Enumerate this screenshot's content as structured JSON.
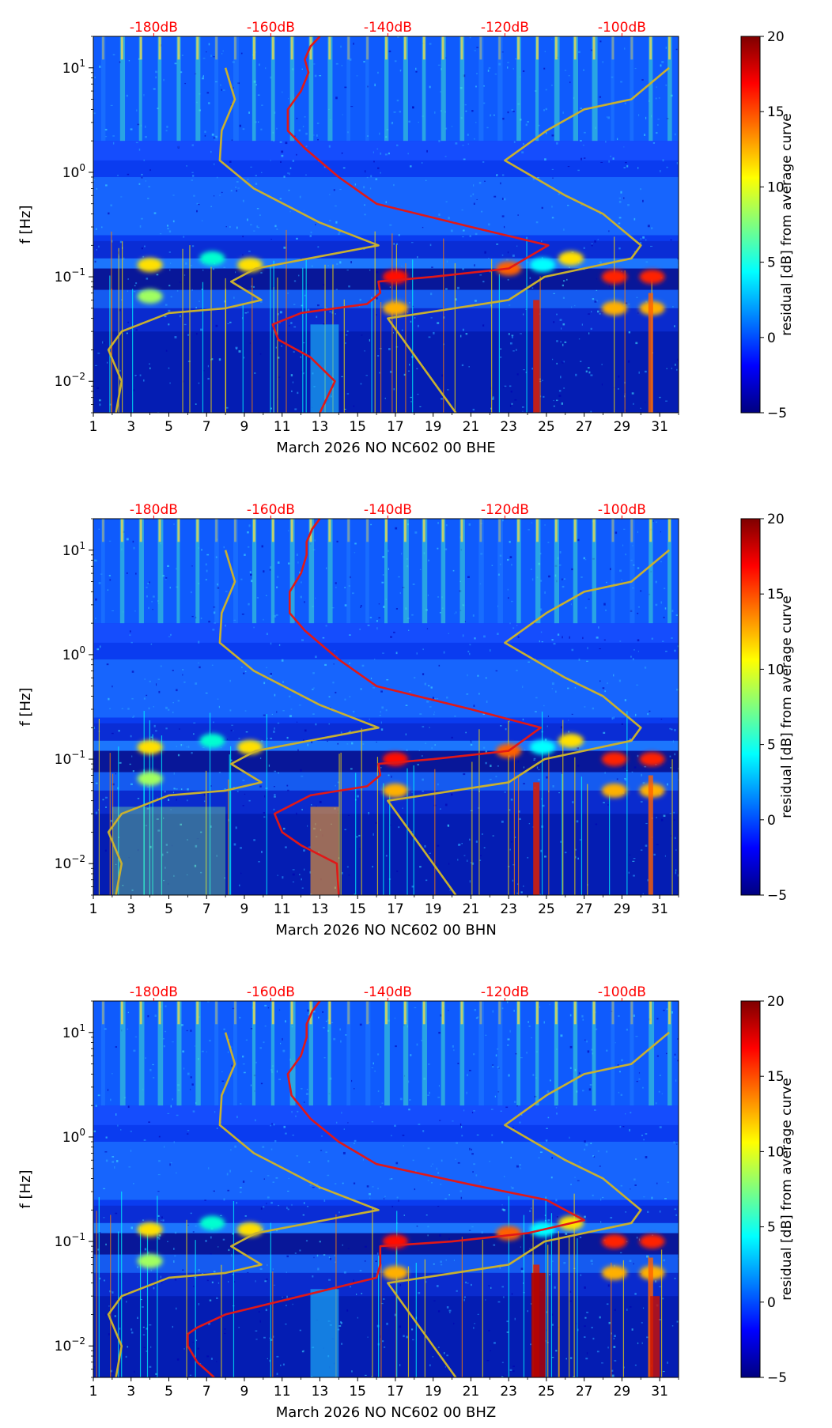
{
  "colors": {
    "peterson": "#c8b030",
    "psd": "#e01818",
    "top_axis_text": "#ff0000",
    "colormap": [
      "#00007f",
      "#0000ff",
      "#007fff",
      "#00ffff",
      "#7fff7f",
      "#ffff00",
      "#ff7f00",
      "#ff0000",
      "#7f0000"
    ]
  },
  "chart_data": [
    {
      "type": "heatmap",
      "xlabel": "March 2026 NO NC602 00 BHE",
      "ylabel": "f [Hz]",
      "x_ticks": [
        "1",
        "3",
        "5",
        "7",
        "9",
        "11",
        "13",
        "15",
        "17",
        "19",
        "21",
        "23",
        "25",
        "27",
        "29",
        "31"
      ],
      "xlim": [
        1,
        32
      ],
      "y_scale": "log",
      "ylim": [
        0.005,
        20
      ],
      "y_ticks": [
        {
          "value": 0.01,
          "base": "10",
          "exp": "−2"
        },
        {
          "value": 0.1,
          "base": "10",
          "exp": "−1"
        },
        {
          "value": 1,
          "base": "10",
          "exp": "0"
        },
        {
          "value": 10,
          "base": "10",
          "exp": "1"
        }
      ],
      "top_ticks": [
        {
          "label": "-180dB",
          "day": 4.2
        },
        {
          "label": "-160dB",
          "day": 10.4
        },
        {
          "label": "-140dB",
          "day": 16.6
        },
        {
          "label": "-120dB",
          "day": 22.8
        },
        {
          "label": "-100dB",
          "day": 29.0
        }
      ],
      "colorbar": {
        "label": "residual [dB] from average curve",
        "min": -5,
        "max": 20,
        "ticks": [
          "20",
          "15",
          "10",
          "5",
          "0",
          "−5"
        ]
      },
      "curves": [
        {
          "key": "nlnm",
          "points": [
            [
              2.2,
              0.005
            ],
            [
              2.5,
              0.01
            ],
            [
              1.8,
              0.02
            ],
            [
              2.5,
              0.03
            ],
            [
              5,
              0.045
            ],
            [
              8,
              0.05
            ],
            [
              9.9,
              0.06
            ],
            [
              8.3,
              0.09
            ],
            [
              9.6,
              0.12
            ],
            [
              16.1,
              0.2
            ],
            [
              13,
              0.33
            ],
            [
              9.5,
              0.7
            ],
            [
              7.7,
              1.3
            ],
            [
              7.8,
              2.5
            ],
            [
              8.5,
              5
            ],
            [
              8.0,
              10
            ]
          ]
        },
        {
          "key": "nhnm",
          "points": [
            [
              20.2,
              0.005
            ],
            [
              16.6,
              0.04
            ],
            [
              23,
              0.06
            ],
            [
              24.9,
              0.1
            ],
            [
              29.5,
              0.15
            ],
            [
              30,
              0.2
            ],
            [
              28,
              0.4
            ],
            [
              26,
              0.6
            ],
            [
              22.8,
              1.3
            ],
            [
              25,
              2.5
            ],
            [
              27,
              4
            ],
            [
              29.5,
              5
            ],
            [
              31.5,
              10
            ]
          ]
        },
        {
          "key": "psd",
          "points": [
            [
              13,
              0.005
            ],
            [
              13.8,
              0.01
            ],
            [
              12.5,
              0.017
            ],
            [
              10.8,
              0.025
            ],
            [
              10.5,
              0.035
            ],
            [
              12,
              0.045
            ],
            [
              15.5,
              0.055
            ],
            [
              16.2,
              0.07
            ],
            [
              16.1,
              0.09
            ],
            [
              19,
              0.1
            ],
            [
              23,
              0.12
            ],
            [
              25.1,
              0.2
            ],
            [
              21,
              0.3
            ],
            [
              16,
              0.5
            ],
            [
              14,
              0.9
            ],
            [
              12.2,
              1.7
            ],
            [
              11.3,
              2.5
            ],
            [
              11.3,
              4
            ],
            [
              12,
              6
            ],
            [
              12.4,
              9
            ],
            [
              12.2,
              12
            ],
            [
              12.5,
              16
            ],
            [
              13,
              20
            ]
          ]
        }
      ]
    },
    {
      "type": "heatmap",
      "xlabel": "March 2026 NO NC602 00 BHN",
      "ylabel": "f [Hz]",
      "x_ticks": [
        "1",
        "3",
        "5",
        "7",
        "9",
        "11",
        "13",
        "15",
        "17",
        "19",
        "21",
        "23",
        "25",
        "27",
        "29",
        "31"
      ],
      "xlim": [
        1,
        32
      ],
      "y_scale": "log",
      "ylim": [
        0.005,
        20
      ],
      "y_ticks": [
        {
          "value": 0.01,
          "base": "10",
          "exp": "−2"
        },
        {
          "value": 0.1,
          "base": "10",
          "exp": "−1"
        },
        {
          "value": 1,
          "base": "10",
          "exp": "0"
        },
        {
          "value": 10,
          "base": "10",
          "exp": "1"
        }
      ],
      "top_ticks": [
        {
          "label": "-180dB",
          "day": 4.2
        },
        {
          "label": "-160dB",
          "day": 10.4
        },
        {
          "label": "-140dB",
          "day": 16.6
        },
        {
          "label": "-120dB",
          "day": 22.8
        },
        {
          "label": "-100dB",
          "day": 29.0
        }
      ],
      "colorbar": {
        "label": "residual [dB] from average curve",
        "min": -5,
        "max": 20,
        "ticks": [
          "20",
          "15",
          "10",
          "5",
          "0",
          "−5"
        ]
      },
      "curves": [
        {
          "key": "nlnm",
          "points": [
            [
              2.2,
              0.005
            ],
            [
              2.5,
              0.01
            ],
            [
              1.8,
              0.02
            ],
            [
              2.5,
              0.03
            ],
            [
              5,
              0.045
            ],
            [
              8,
              0.05
            ],
            [
              9.9,
              0.06
            ],
            [
              8.3,
              0.09
            ],
            [
              9.6,
              0.12
            ],
            [
              16.1,
              0.2
            ],
            [
              13,
              0.33
            ],
            [
              9.5,
              0.7
            ],
            [
              7.7,
              1.3
            ],
            [
              7.8,
              2.5
            ],
            [
              8.5,
              5
            ],
            [
              8.0,
              10
            ]
          ]
        },
        {
          "key": "nhnm",
          "points": [
            [
              20.2,
              0.005
            ],
            [
              16.6,
              0.04
            ],
            [
              23,
              0.06
            ],
            [
              24.9,
              0.1
            ],
            [
              29.5,
              0.15
            ],
            [
              30,
              0.2
            ],
            [
              28,
              0.4
            ],
            [
              26,
              0.6
            ],
            [
              22.8,
              1.3
            ],
            [
              25,
              2.5
            ],
            [
              27,
              4
            ],
            [
              29.5,
              5
            ],
            [
              31.5,
              10
            ]
          ]
        },
        {
          "key": "psd",
          "points": [
            [
              14,
              0.005
            ],
            [
              13.9,
              0.01
            ],
            [
              12,
              0.015
            ],
            [
              11,
              0.02
            ],
            [
              10.6,
              0.03
            ],
            [
              12.5,
              0.045
            ],
            [
              15.5,
              0.055
            ],
            [
              16.2,
              0.07
            ],
            [
              16.1,
              0.09
            ],
            [
              19,
              0.1
            ],
            [
              23,
              0.12
            ],
            [
              24.7,
              0.2
            ],
            [
              21,
              0.3
            ],
            [
              16,
              0.5
            ],
            [
              14,
              0.9
            ],
            [
              12.2,
              1.7
            ],
            [
              11.4,
              2.5
            ],
            [
              11.4,
              4
            ],
            [
              12,
              6
            ],
            [
              12.3,
              9
            ],
            [
              12.3,
              12
            ],
            [
              12.6,
              16
            ],
            [
              13,
              20
            ]
          ]
        }
      ]
    },
    {
      "type": "heatmap",
      "xlabel": "March 2026 NO NC602 00 BHZ",
      "ylabel": "f [Hz]",
      "x_ticks": [
        "1",
        "3",
        "5",
        "7",
        "9",
        "11",
        "13",
        "15",
        "17",
        "19",
        "21",
        "23",
        "25",
        "27",
        "29",
        "31"
      ],
      "xlim": [
        1,
        32
      ],
      "y_scale": "log",
      "ylim": [
        0.005,
        20
      ],
      "y_ticks": [
        {
          "value": 0.01,
          "base": "10",
          "exp": "−2"
        },
        {
          "value": 0.1,
          "base": "10",
          "exp": "−1"
        },
        {
          "value": 1,
          "base": "10",
          "exp": "0"
        },
        {
          "value": 10,
          "base": "10",
          "exp": "1"
        }
      ],
      "top_ticks": [
        {
          "label": "-180dB",
          "day": 4.2
        },
        {
          "label": "-160dB",
          "day": 10.4
        },
        {
          "label": "-140dB",
          "day": 16.6
        },
        {
          "label": "-120dB",
          "day": 22.8
        },
        {
          "label": "-100dB",
          "day": 29.0
        }
      ],
      "colorbar": {
        "label": "residual [dB] from average curve",
        "min": -5,
        "max": 20,
        "ticks": [
          "20",
          "15",
          "10",
          "5",
          "0",
          "−5"
        ]
      },
      "curves": [
        {
          "key": "nlnm",
          "points": [
            [
              2.2,
              0.005
            ],
            [
              2.5,
              0.01
            ],
            [
              1.8,
              0.02
            ],
            [
              2.5,
              0.03
            ],
            [
              5,
              0.045
            ],
            [
              8,
              0.05
            ],
            [
              9.9,
              0.06
            ],
            [
              8.3,
              0.09
            ],
            [
              9.6,
              0.12
            ],
            [
              16.1,
              0.2
            ],
            [
              13,
              0.33
            ],
            [
              9.5,
              0.7
            ],
            [
              7.7,
              1.3
            ],
            [
              7.8,
              2.5
            ],
            [
              8.5,
              5
            ],
            [
              8.0,
              10
            ]
          ]
        },
        {
          "key": "nhnm",
          "points": [
            [
              20.2,
              0.005
            ],
            [
              16.6,
              0.04
            ],
            [
              23,
              0.06
            ],
            [
              24.9,
              0.1
            ],
            [
              29.5,
              0.15
            ],
            [
              30,
              0.2
            ],
            [
              28,
              0.4
            ],
            [
              26,
              0.6
            ],
            [
              22.8,
              1.3
            ],
            [
              25,
              2.5
            ],
            [
              27,
              4
            ],
            [
              29.5,
              5
            ],
            [
              31.5,
              10
            ]
          ]
        },
        {
          "key": "psd",
          "points": [
            [
              7.4,
              0.005
            ],
            [
              6.5,
              0.007
            ],
            [
              6,
              0.01
            ],
            [
              6,
              0.013
            ],
            [
              6.5,
              0.015
            ],
            [
              8,
              0.02
            ],
            [
              12,
              0.03
            ],
            [
              16,
              0.045
            ],
            [
              16.2,
              0.06
            ],
            [
              16.2,
              0.09
            ],
            [
              20,
              0.1
            ],
            [
              24,
              0.12
            ],
            [
              27,
              0.16
            ],
            [
              25,
              0.25
            ],
            [
              21,
              0.35
            ],
            [
              16,
              0.55
            ],
            [
              14,
              0.9
            ],
            [
              12.5,
              1.5
            ],
            [
              11.5,
              2.5
            ],
            [
              11.3,
              4
            ],
            [
              12,
              6
            ],
            [
              12.3,
              9
            ],
            [
              12.3,
              12
            ],
            [
              12.6,
              16
            ],
            [
              13,
              20
            ]
          ]
        }
      ]
    }
  ]
}
